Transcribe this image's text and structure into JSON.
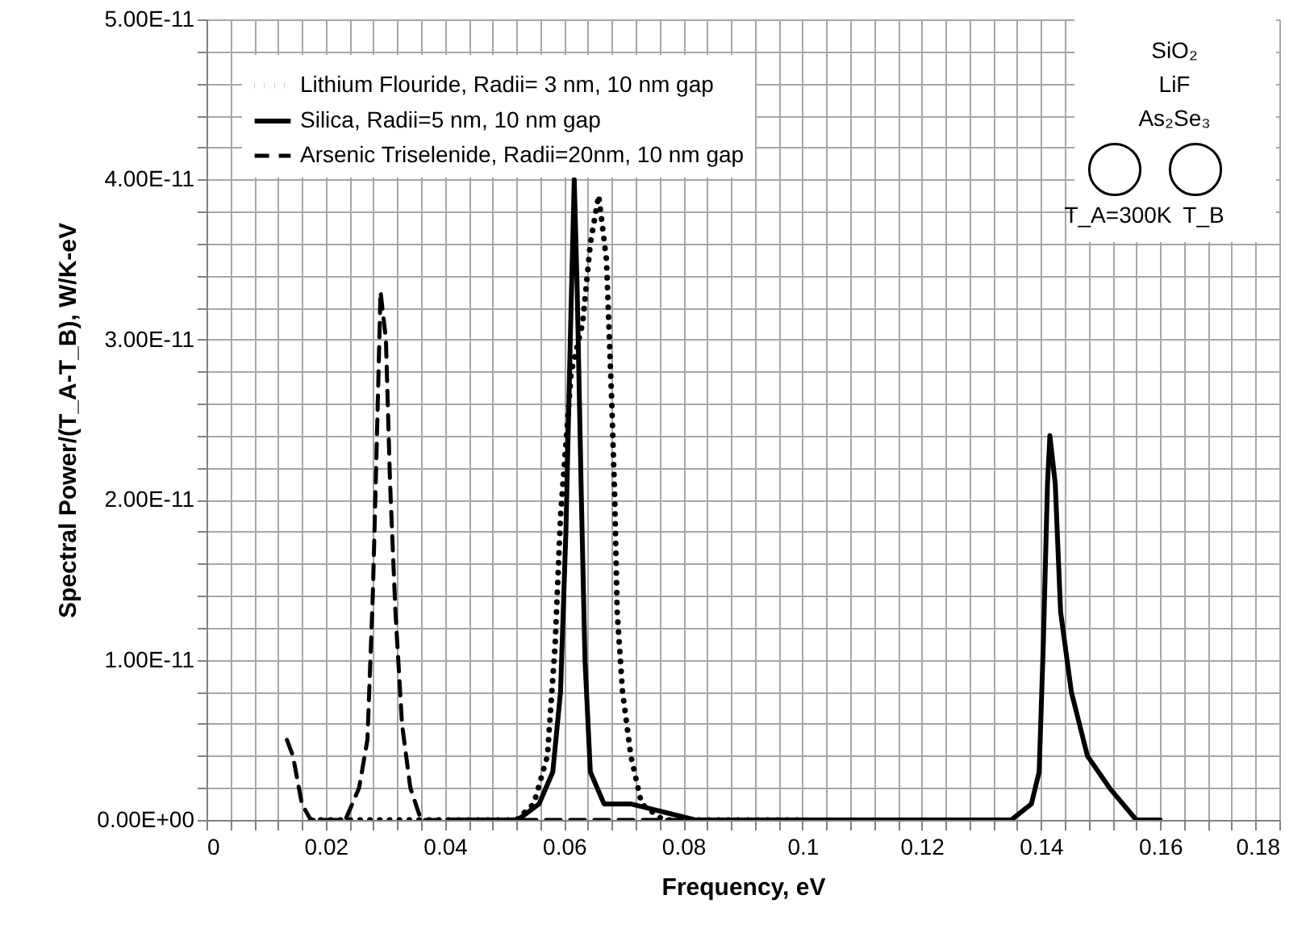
{
  "chart_data": {
    "type": "line",
    "xlabel": "Frequency, eV",
    "ylabel": "Spectral Power/(T_A-T_B), W/K-eV",
    "annotations": [
      "SiO₂",
      "LiF",
      "As₂Se₃",
      "T_A=300K",
      "T_B"
    ],
    "series": [
      {
        "name": "Lithium Flouride, Radii= 3 nm, 10 nm gap",
        "color": "#000000",
        "line_style": "dotted",
        "x": [
          0.0175,
          0.03,
          0.045,
          0.052,
          0.0549,
          0.0572,
          0.0585,
          0.0594,
          0.0612,
          0.0631,
          0.0644,
          0.0658,
          0.0671,
          0.068,
          0.0685,
          0.0689,
          0.0698,
          0.0712,
          0.073,
          0.0766,
          0.09,
          0.1
        ],
        "values": [
          0,
          0,
          0,
          0,
          1e-12,
          4e-12,
          1.1e-11,
          1.9e-11,
          2.8e-11,
          3.1e-11,
          3.6e-11,
          3.9e-11,
          3.5e-11,
          2.6e-11,
          2e-11,
          1.3e-11,
          8e-12,
          4e-12,
          1e-12,
          0,
          0,
          0
        ]
      },
      {
        "name": "Silica, Radii=5 nm, 10 nm gap",
        "color": "#000000",
        "line_style": "solid",
        "x": [
          0.0405,
          0.0522,
          0.0558,
          0.0581,
          0.0594,
          0.0603,
          0.0611,
          0.0617,
          0.0622,
          0.0629,
          0.0635,
          0.0644,
          0.0667,
          0.0712,
          0.082,
          0.095,
          0.1009,
          0.109,
          0.126,
          0.135,
          0.1384,
          0.1397,
          0.1404,
          0.1411,
          0.1415,
          0.1424,
          0.1433,
          0.1451,
          0.1478,
          0.1515,
          0.156,
          0.16
        ],
        "values": [
          0,
          0,
          1e-12,
          3e-12,
          8e-12,
          1.8e-11,
          3.1e-11,
          4e-11,
          3.3e-11,
          2e-11,
          1e-11,
          3e-12,
          1e-12,
          1e-12,
          0,
          0,
          0,
          0,
          0,
          0,
          1e-12,
          3e-12,
          1.1e-11,
          2.1e-11,
          2.4e-11,
          2.1e-11,
          1.3e-11,
          8e-12,
          4e-12,
          2e-12,
          0,
          0
        ]
      },
      {
        "name": "Arsenic Triselenide, Radii=20nm, 10 nm gap",
        "color": "#000000",
        "line_style": "dashed",
        "x": [
          0.0135,
          0.0145,
          0.016,
          0.0175,
          0.0233,
          0.0256,
          0.027,
          0.0279,
          0.0286,
          0.0292,
          0.0301,
          0.0308,
          0.0317,
          0.0328,
          0.0342,
          0.036,
          0.0375,
          0.04,
          0.06,
          0.08
        ],
        "values": [
          5e-12,
          4e-12,
          1e-12,
          0,
          0,
          2e-12,
          5e-12,
          1.4e-11,
          2.4e-11,
          3.3e-11,
          3e-11,
          2.1e-11,
          1.3e-11,
          6e-12,
          2e-12,
          0,
          0,
          0,
          0,
          0
        ]
      }
    ],
    "xlim": [
      0,
      0.18
    ],
    "xticks": [
      0,
      {
        "value": 0.004,
        "label": null
      },
      {
        "value": 0.008,
        "label": null
      },
      {
        "value": 0.012,
        "label": null
      },
      {
        "value": 0.016,
        "label": null
      },
      0.02,
      {
        "value": 0.024,
        "label": null
      },
      {
        "value": 0.028,
        "label": null
      },
      {
        "value": 0.032,
        "label": null
      },
      {
        "value": 0.036,
        "label": null
      },
      0.04,
      {
        "value": 0.044,
        "label": null
      },
      {
        "value": 0.048,
        "label": null
      },
      {
        "value": 0.052,
        "label": null
      },
      {
        "value": 0.056,
        "label": null
      },
      0.06,
      {
        "value": 0.064,
        "label": null
      },
      {
        "value": 0.068,
        "label": null
      },
      {
        "value": 0.072,
        "label": null
      },
      {
        "value": 0.076,
        "label": null
      },
      0.08,
      {
        "value": 0.084,
        "label": null
      },
      {
        "value": 0.088,
        "label": null
      },
      {
        "value": 0.092,
        "label": null
      },
      {
        "value": 0.096,
        "label": null
      },
      0.1,
      {
        "value": 0.104,
        "label": null
      },
      {
        "value": 0.108,
        "label": null
      },
      {
        "value": 0.112,
        "label": null
      },
      {
        "value": 0.116,
        "label": null
      },
      0.12,
      {
        "value": 0.124,
        "label": null
      },
      {
        "value": 0.128,
        "label": null
      },
      {
        "value": 0.132,
        "label": null
      },
      {
        "value": 0.136,
        "label": null
      },
      0.14,
      {
        "value": 0.144,
        "label": null
      },
      {
        "value": 0.148,
        "label": null
      },
      {
        "value": 0.152,
        "label": null
      },
      {
        "value": 0.156,
        "label": null
      },
      0.16,
      {
        "value": 0.164,
        "label": null
      },
      {
        "value": 0.168,
        "label": null
      },
      {
        "value": 0.172,
        "label": null
      },
      {
        "value": 0.176,
        "label": null
      },
      0.18
    ],
    "ylim": [
      0,
      5e-11
    ],
    "yticks": [
      {
        "value": 0,
        "label": "0.00E+00"
      },
      {
        "value": 2e-12,
        "label": null
      },
      {
        "value": 4e-12,
        "label": null
      },
      {
        "value": 6e-12,
        "label": null
      },
      {
        "value": 8e-12,
        "label": null
      },
      {
        "value": 1e-11,
        "label": "1.00E-11"
      },
      {
        "value": 1.2e-11,
        "label": null
      },
      {
        "value": 1.4e-11,
        "label": null
      },
      {
        "value": 1.6e-11,
        "label": null
      },
      {
        "value": 1.8e-11,
        "label": null
      },
      {
        "value": 2e-11,
        "label": "2.00E-11"
      },
      {
        "value": 2.2e-11,
        "label": null
      },
      {
        "value": 2.4e-11,
        "label": null
      },
      {
        "value": 2.6e-11,
        "label": null
      },
      {
        "value": 2.8e-11,
        "label": null
      },
      {
        "value": 3e-11,
        "label": "3.00E-11"
      },
      {
        "value": 3.2e-11,
        "label": null
      },
      {
        "value": 3.4e-11,
        "label": null
      },
      {
        "value": 3.6e-11,
        "label": null
      },
      {
        "value": 3.8e-11,
        "label": null
      },
      {
        "value": 4e-11,
        "label": "4.00E-11"
      },
      {
        "value": 4.2e-11,
        "label": null
      },
      {
        "value": 4.4e-11,
        "label": null
      },
      {
        "value": 4.6e-11,
        "label": null
      },
      {
        "value": 4.8e-11,
        "label": null
      },
      {
        "value": 5e-11,
        "label": "5.00E-11"
      }
    ],
    "grid": true,
    "legend": "top left"
  }
}
